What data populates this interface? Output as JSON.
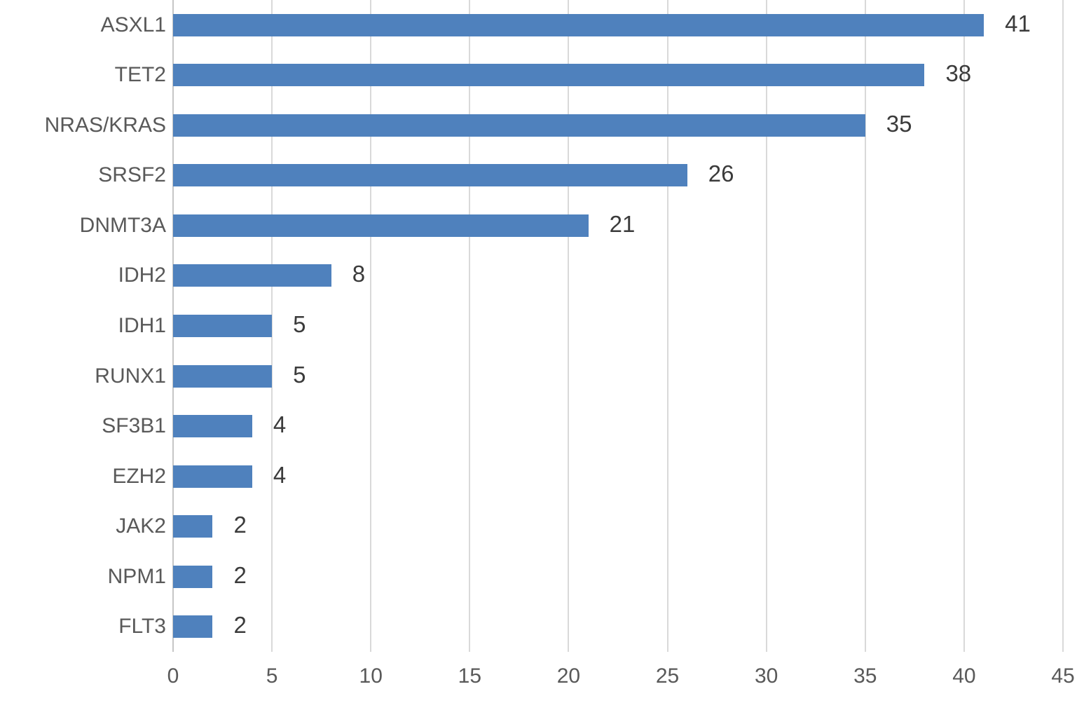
{
  "chart_data": {
    "type": "bar",
    "orientation": "horizontal",
    "title": "",
    "xlabel": "",
    "ylabel": "",
    "categories": [
      "ASXL1",
      "TET2",
      "NRAS/KRAS",
      "SRSF2",
      "DNMT3A",
      "IDH2",
      "IDH1",
      "RUNX1",
      "SF3B1",
      "EZH2",
      "JAK2",
      "NPM1",
      "FLT3"
    ],
    "values": [
      41,
      38,
      35,
      26,
      21,
      8,
      5,
      5,
      4,
      4,
      2,
      2,
      2
    ],
    "data_labels": [
      "41",
      "38",
      "35",
      "26",
      "21",
      "8",
      "5",
      "5",
      "4",
      "4",
      "2",
      "2",
      "2"
    ],
    "xlim": [
      0,
      45
    ],
    "x_ticks": [
      0,
      5,
      10,
      15,
      20,
      25,
      30,
      35,
      40,
      45
    ],
    "x_tick_labels": [
      "0",
      "5",
      "10",
      "15",
      "20",
      "25",
      "30",
      "35",
      "40",
      "45"
    ],
    "grid": "vertical",
    "legend": "none",
    "bar_color": "#4f81bd",
    "gridline_color": "#d9d9d9",
    "label_color": "#595959",
    "value_label_color": "#3b3b3b",
    "background_color": "#ffffff"
  }
}
